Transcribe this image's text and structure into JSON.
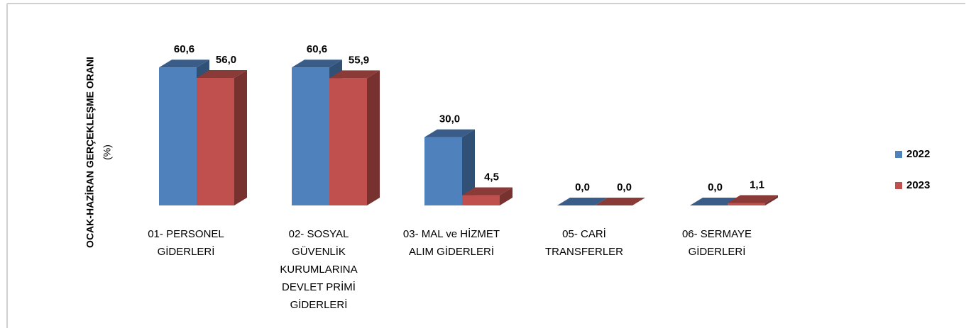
{
  "chart_data": {
    "type": "bar3d",
    "y_label": [
      "OCAK-HAZİRAN GERÇEKLEŞME ORANI",
      "(%)"
    ],
    "categories": [
      [
        "01- PERSONEL",
        "GİDERLERİ"
      ],
      [
        "02- SOSYAL",
        "GÜVENLİK",
        "KURUMLARINA",
        "DEVLET PRİMİ",
        "GİDERLERİ"
      ],
      [
        "03- MAL ve HİZMET",
        "ALIM GİDERLERİ"
      ],
      [
        "05- CARİ",
        "TRANSFERLER"
      ],
      [
        "06- SERMAYE",
        "GİDERLERİ"
      ]
    ],
    "series": [
      {
        "name": "2022",
        "color": "#4f81bd",
        "values": [
          60.6,
          60.6,
          30.0,
          0.0,
          0.0
        ],
        "value_labels": [
          "60,6",
          "60,6",
          "30,0",
          "0,0",
          "0,0"
        ]
      },
      {
        "name": "2023",
        "color": "#c0504d",
        "values": [
          56.0,
          55.9,
          4.5,
          0.0,
          1.1
        ],
        "value_labels": [
          "56,0",
          "55,9",
          "4,5",
          "0,0",
          "1,1"
        ]
      }
    ],
    "ylim": [
      0,
      70
    ],
    "legend": "right"
  }
}
